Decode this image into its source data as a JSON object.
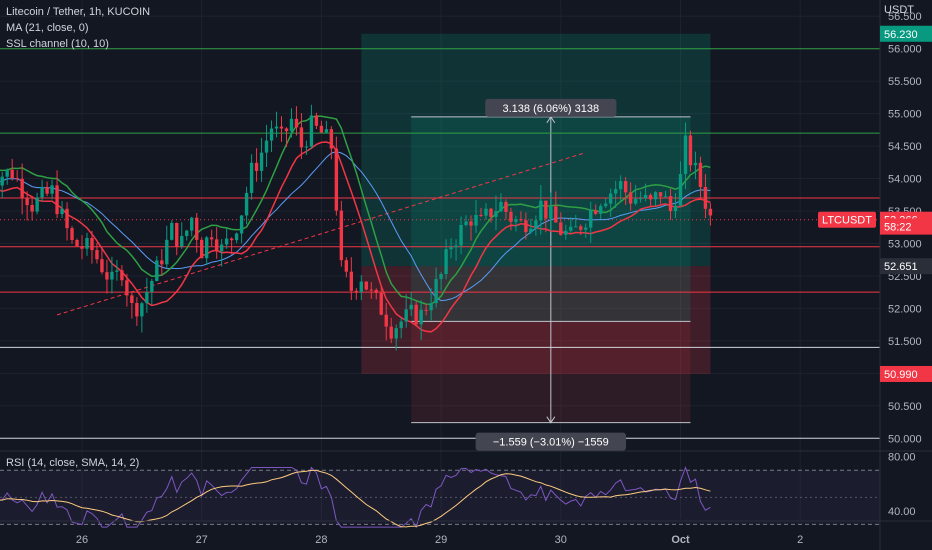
{
  "header": {
    "symbol_line": "Litecoin / Tether, 1h, KUCOIN",
    "ma_line": "MA (21, close, 0)",
    "ssl_line": "SSL channel (10, 10)",
    "currency": "USDT"
  },
  "rsi": {
    "label": "RSI (14, close, SMA, 14, 2)",
    "ticks": [
      "80.00",
      "40.00"
    ]
  },
  "chart_data": {
    "type": "candlestick",
    "symbol": "LTCUSDT",
    "exchange": "KUCOIN",
    "interval": "1h",
    "y_ticks": [
      "56.500",
      "56.000",
      "55.500",
      "55.000",
      "54.500",
      "54.000",
      "53.500",
      "53.000",
      "52.500",
      "52.000",
      "51.500",
      "51.000",
      "50.500",
      "50.000"
    ],
    "x_ticks": [
      "26",
      "27",
      "28",
      "29",
      "30",
      "Oct",
      "2"
    ],
    "ylim": [
      49.85,
      56.75
    ],
    "price_labels": [
      {
        "text": "56.230",
        "value": 56.23,
        "color": "#089981"
      },
      {
        "text": "LTCUSDT",
        "value": 53.366,
        "color": "#f23645"
      },
      {
        "text": "53.366",
        "value": 53.366,
        "color": "#f23645"
      },
      {
        "text": "58:22",
        "value": 53.26,
        "color": "#f23645"
      },
      {
        "text": "52.651",
        "value": 52.651,
        "color": "#2a2e39"
      },
      {
        "text": "50.990",
        "value": 50.99,
        "color": "#f23645"
      }
    ],
    "horizontal_lines": [
      {
        "value": 56.0,
        "color": "#2ea043"
      },
      {
        "value": 54.7,
        "color": "#2ea043"
      },
      {
        "value": 53.7,
        "color": "#f23645"
      },
      {
        "value": 52.95,
        "color": "#f23645"
      },
      {
        "value": 52.25,
        "color": "#f23645"
      },
      {
        "value": 51.4,
        "color": "#d1d4dc"
      },
      {
        "value": 50.0,
        "color": "#d1d4dc"
      }
    ],
    "position": {
      "entry": 52.651,
      "target": 56.23,
      "stop": 50.99,
      "measure_up": {
        "from": 51.8,
        "to": 54.95,
        "label": "3.138 (6.06%) 3138"
      },
      "measure_down": {
        "from": 51.8,
        "to": 50.24,
        "label": "−1.559 (−3.01%) −1559"
      }
    },
    "trend_line": {
      "from": {
        "t": -5,
        "v": 51.9
      },
      "to": {
        "t": 101,
        "v": 54.4
      }
    },
    "candles": [],
    "ma": [],
    "ssl_up": [],
    "ssl_down": [],
    "rsi_values": []
  },
  "colors": {
    "up": "#089981",
    "down": "#f23645",
    "ma": "#5b9cf6",
    "ssl_up": "#2ea043",
    "ssl_down": "#f23645",
    "rsi": "#7e57c2",
    "rsi_ma": "#ffcc80"
  }
}
